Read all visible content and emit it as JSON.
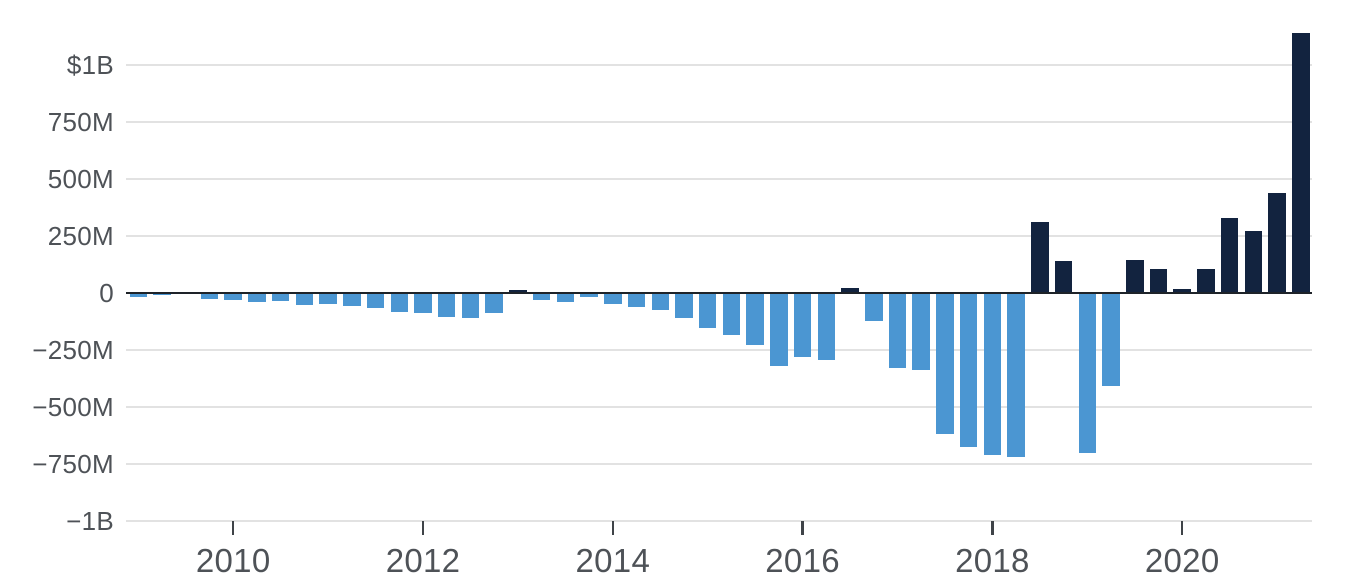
{
  "chart_data": {
    "type": "bar",
    "title": "",
    "legend_position": "none",
    "grid": true,
    "y_axis_unit": "USD ($M / $B)",
    "ylim": [
      -1000,
      1250
    ],
    "categories": [
      "2009 Q1",
      "2009 Q2",
      "2009 Q3",
      "2009 Q4",
      "2010 Q1",
      "2010 Q2",
      "2010 Q3",
      "2010 Q4",
      "2011 Q1",
      "2011 Q2",
      "2011 Q3",
      "2011 Q4",
      "2012 Q1",
      "2012 Q2",
      "2012 Q3",
      "2012 Q4",
      "2013 Q1",
      "2013 Q2",
      "2013 Q3",
      "2013 Q4",
      "2014 Q1",
      "2014 Q2",
      "2014 Q3",
      "2014 Q4",
      "2015 Q1",
      "2015 Q2",
      "2015 Q3",
      "2015 Q4",
      "2016 Q1",
      "2016 Q2",
      "2016 Q3",
      "2016 Q4",
      "2017 Q1",
      "2017 Q2",
      "2017 Q3",
      "2017 Q4",
      "2018 Q1",
      "2018 Q2",
      "2018 Q3",
      "2018 Q4",
      "2019 Q1",
      "2019 Q2",
      "2019 Q3",
      "2019 Q4",
      "2020 Q1",
      "2020 Q2",
      "2020 Q3",
      "2020 Q4",
      "2021 Q1",
      "2021 Q2"
    ],
    "values_millions": [
      -16.0,
      -10.9,
      -4.6,
      -24.2,
      -29.5,
      -38.5,
      -34.9,
      -51.4,
      -48.9,
      -58.9,
      -65.1,
      -81.5,
      -89.9,
      -105.6,
      -110.8,
      -89.9,
      11.2,
      -30.5,
      -38.5,
      -16.3,
      -49.8,
      -61.9,
      -74.7,
      -107.6,
      -154.2,
      -184.2,
      -229.9,
      -320.4,
      -282.3,
      -293.2,
      21.9,
      -121.3,
      -330.3,
      -336.4,
      -619.4,
      -675.4,
      -709.6,
      -717.5,
      311.5,
      139.5,
      -702.1,
      -408.3,
      143.0,
      105.0,
      16.0,
      104.0,
      331.0,
      270.0,
      438.0,
      1142.0
    ],
    "y_ticks": [
      {
        "label": "$1B",
        "value": 1000
      },
      {
        "label": "750M",
        "value": 750
      },
      {
        "label": "500M",
        "value": 500
      },
      {
        "label": "250M",
        "value": 250
      },
      {
        "label": "0",
        "value": 0
      },
      {
        "label": "−250M",
        "value": -250
      },
      {
        "label": "−500M",
        "value": -500
      },
      {
        "label": "−750M",
        "value": -750
      },
      {
        "label": "−1B",
        "value": -1000
      }
    ],
    "x_ticks": [
      {
        "label": "2010",
        "bar_index": 4
      },
      {
        "label": "2012",
        "bar_index": 12
      },
      {
        "label": "2014",
        "bar_index": 20
      },
      {
        "label": "2016",
        "bar_index": 28
      },
      {
        "label": "2018",
        "bar_index": 36
      },
      {
        "label": "2020",
        "bar_index": 44
      }
    ],
    "colors": {
      "positive_bar": "#12233F",
      "negative_bar": "#4B96D2",
      "zero_line": "#1E2329",
      "gridline": "#E2E2E2",
      "tick_mark": "#3F4348",
      "axis_text": "#4E5257",
      "background": "#FFFFFF"
    }
  }
}
